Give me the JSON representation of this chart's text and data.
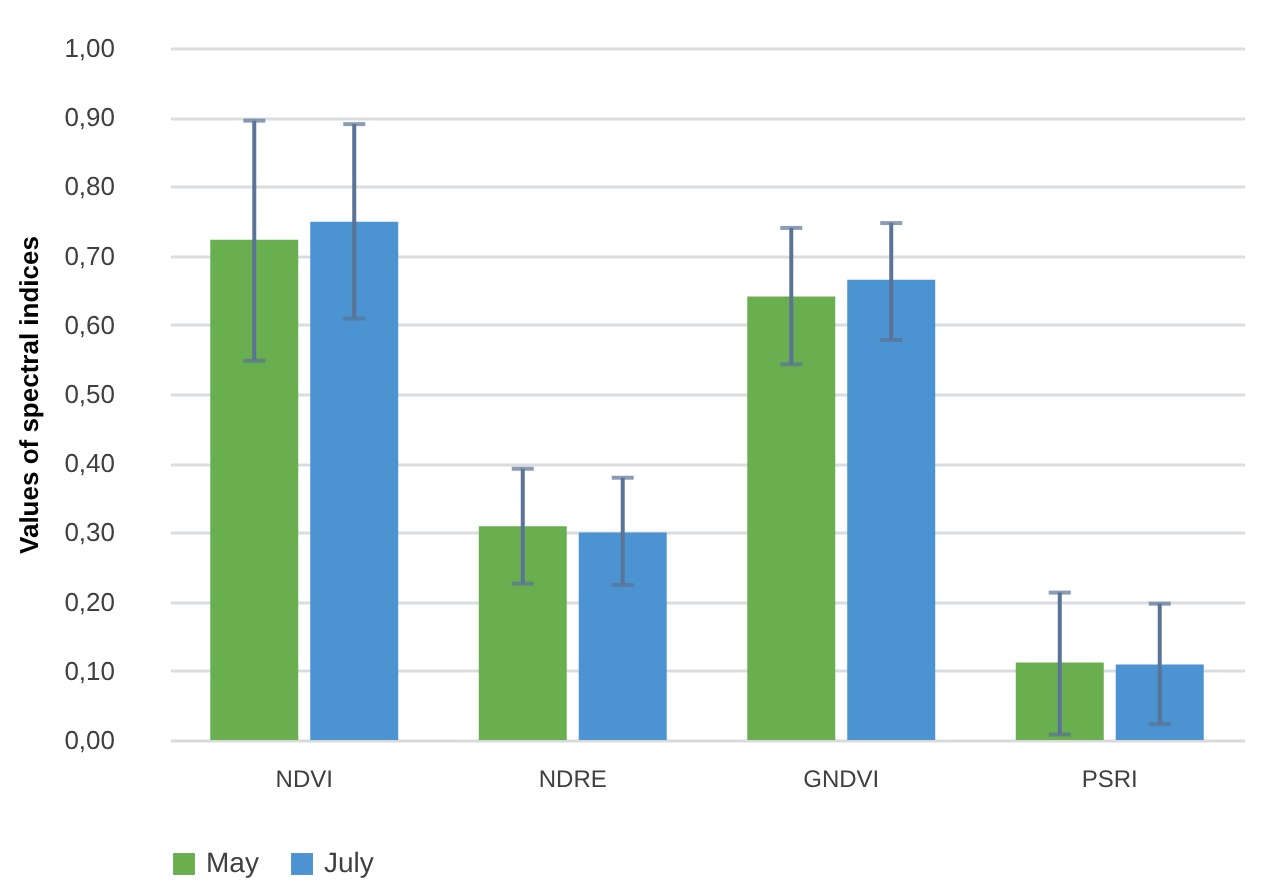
{
  "chart_data": {
    "type": "bar",
    "ylabel": "Values of spectral indices",
    "categories": [
      "NDVI",
      "NDRE",
      "GNDVI",
      "PSRI"
    ],
    "series": [
      {
        "name": "May",
        "color": "#6aaf4f",
        "values": [
          0.723,
          0.309,
          0.641,
          0.112
        ],
        "errors": [
          [
            0.548,
            0.895
          ],
          [
            0.226,
            0.392
          ],
          [
            0.543,
            0.74
          ],
          [
            0.008,
            0.213
          ]
        ]
      },
      {
        "name": "July",
        "color": "#4b93d1",
        "values": [
          0.749,
          0.3,
          0.665,
          0.109
        ],
        "errors": [
          [
            0.609,
            0.89
          ],
          [
            0.224,
            0.379
          ],
          [
            0.578,
            0.747
          ],
          [
            0.023,
            0.197
          ]
        ]
      }
    ],
    "ylim": [
      0,
      1
    ],
    "yticks": [
      {
        "value": 0,
        "label": "0,00"
      },
      {
        "value": 0.1,
        "label": "0,10"
      },
      {
        "value": 0.2,
        "label": "0,20"
      },
      {
        "value": 0.3,
        "label": "0,30"
      },
      {
        "value": 0.4,
        "label": "0,40"
      },
      {
        "value": 0.5,
        "label": "0,50"
      },
      {
        "value": 0.6,
        "label": "0,60"
      },
      {
        "value": 0.7,
        "label": "0,70"
      },
      {
        "value": 0.8,
        "label": "0,80"
      },
      {
        "value": 0.9,
        "label": "0,90"
      },
      {
        "value": 1,
        "label": "1,00"
      }
    ],
    "grid": "y",
    "legend": "bottom"
  }
}
